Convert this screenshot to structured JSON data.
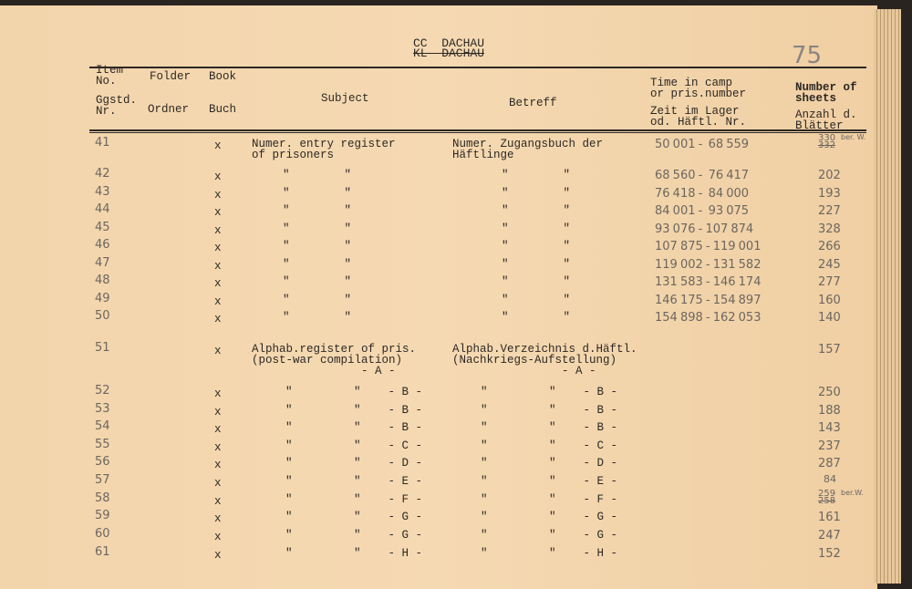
{
  "title": {
    "line1": "CC  DACHAU",
    "line2": "KL  DACHAU"
  },
  "page_number": "75",
  "headers": {
    "item_en": "Item\nNo.",
    "folder_en": "Folder",
    "book_en": "Book",
    "item_de": "Ggstd.\nNr.",
    "folder_de": "Ordner",
    "book_de": "Buch",
    "subject": "Subject",
    "betreff": "Betreff",
    "time_en": "Time in camp\nor pris.number",
    "time_de": "Zeit im Lager\nod. Häftl. Nr.",
    "sheets_en": "Number of\nsheets",
    "sheets_de": "Anzahl d.\nBlätter"
  },
  "rows": [
    {
      "item": "41",
      "book": "x",
      "subject": "Numer. entry register\nof prisoners",
      "betreff": "Numer. Zugangsbuch der\nHäftlinge",
      "time": "50 001 -  68 559",
      "sheets": "330",
      "sheets_struck": "332",
      "sheets_note": "ber. W."
    },
    {
      "item": "42",
      "book": "x",
      "subject": "\"        \"",
      "betreff": "\"        \"",
      "time": "68 560 -  76 417",
      "sheets": "202"
    },
    {
      "item": "43",
      "book": "x",
      "subject": "\"        \"",
      "betreff": "\"        \"",
      "time": "76 418 -  84 000",
      "sheets": "193"
    },
    {
      "item": "44",
      "book": "x",
      "subject": "\"        \"",
      "betreff": "\"        \"",
      "time": "84 001 -  93 075",
      "sheets": "227"
    },
    {
      "item": "45",
      "book": "x",
      "subject": "\"        \"",
      "betreff": "\"        \"",
      "time": "93 076 - 107 874",
      "sheets": "328"
    },
    {
      "item": "46",
      "book": "x",
      "subject": "\"        \"",
      "betreff": "\"        \"",
      "time": "107 875 - 119 001",
      "sheets": "266"
    },
    {
      "item": "47",
      "book": "x",
      "subject": "\"        \"",
      "betreff": "\"        \"",
      "time": "119 002 - 131 582",
      "sheets": "245"
    },
    {
      "item": "48",
      "book": "x",
      "subject": "\"        \"",
      "betreff": "\"        \"",
      "time": "131 583 - 146 174",
      "sheets": "277"
    },
    {
      "item": "49",
      "book": "x",
      "subject": "\"        \"",
      "betreff": "\"        \"",
      "time": "146 175 - 154 897",
      "sheets": "160"
    },
    {
      "item": "50",
      "book": "x",
      "subject": "\"        \"",
      "betreff": "\"        \"",
      "time": "154 898 - 162 053",
      "sheets": "140"
    },
    {
      "item": "51",
      "book": "x",
      "subject": "Alphab.register of pris.\n(post-war compilation)\n                - A -",
      "betreff": "Alphab.Verzeichnis d.Häftl.\n(Nachkriegs-Aufstellung)\n                - A -",
      "time": "",
      "sheets": "157"
    },
    {
      "item": "52",
      "book": "x",
      "subject": "\"         \"    - B -",
      "betreff": "\"         \"    - B -",
      "time": "",
      "sheets": "250"
    },
    {
      "item": "53",
      "book": "x",
      "subject": "\"         \"    - B -",
      "betreff": "\"         \"    - B -",
      "time": "",
      "sheets": "188"
    },
    {
      "item": "54",
      "book": "x",
      "subject": "\"         \"    - B -",
      "betreff": "\"         \"    - B -",
      "time": "",
      "sheets": "143"
    },
    {
      "item": "55",
      "book": "x",
      "subject": "\"         \"    - C -",
      "betreff": "\"         \"    - C -",
      "time": "",
      "sheets": "237"
    },
    {
      "item": "56",
      "book": "x",
      "subject": "\"         \"    - D -",
      "betreff": "\"         \"    - D -",
      "time": "",
      "sheets": "287"
    },
    {
      "item": "57",
      "book": "x",
      "subject": "\"         \"    - E -",
      "betreff": "\"         \"    - E -",
      "time": "",
      "sheets": "84"
    },
    {
      "item": "58",
      "book": "x",
      "subject": "\"         \"    - F -",
      "betreff": "\"         \"    - F -",
      "time": "",
      "sheets": "259",
      "sheets_struck": "258",
      "sheets_note": "ber.W."
    },
    {
      "item": "59",
      "book": "x",
      "subject": "\"         \"    - G -",
      "betreff": "\"         \"    - G -",
      "time": "",
      "sheets": "161"
    },
    {
      "item": "60",
      "book": "x",
      "subject": "\"         \"    - G -",
      "betreff": "\"         \"    - G -",
      "time": "",
      "sheets": "247"
    },
    {
      "item": "61",
      "book": "x",
      "subject": "\"         \"    - H -",
      "betreff": "\"         \"    - H -",
      "time": "",
      "sheets": "152"
    }
  ]
}
